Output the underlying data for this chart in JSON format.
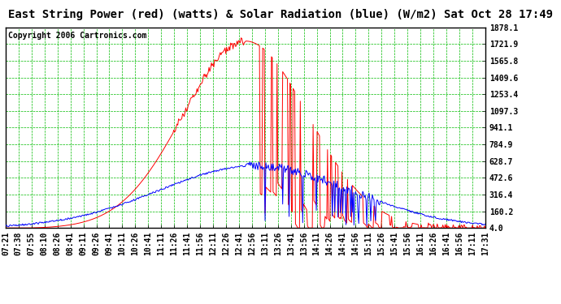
{
  "title": "East String Power (red) (watts) & Solar Radiation (blue) (W/m2) Sat Oct 28 17:49",
  "copyright": "Copyright 2006 Cartronics.com",
  "bg_color": "#ffffff",
  "plot_bg_color": "#ffffff",
  "grid_color": "#00bb00",
  "title_color": "#000000",
  "red_color": "#ff0000",
  "blue_color": "#0000ff",
  "copyright_color": "#000000",
  "yticks": [
    4.0,
    160.2,
    316.4,
    472.6,
    628.7,
    784.9,
    941.1,
    1097.3,
    1253.4,
    1409.6,
    1565.8,
    1721.9,
    1878.1
  ],
  "ylim": [
    4.0,
    1878.1
  ],
  "xtick_labels": [
    "07:21",
    "07:38",
    "07:55",
    "08:10",
    "08:26",
    "08:41",
    "09:11",
    "09:26",
    "09:41",
    "10:11",
    "10:26",
    "10:41",
    "11:11",
    "11:26",
    "11:41",
    "11:56",
    "12:11",
    "12:26",
    "12:41",
    "12:56",
    "13:11",
    "13:26",
    "13:41",
    "13:56",
    "14:11",
    "14:26",
    "14:41",
    "14:56",
    "15:11",
    "15:26",
    "15:41",
    "15:56",
    "16:11",
    "16:26",
    "16:41",
    "16:56",
    "17:11",
    "17:31"
  ],
  "title_fontsize": 10,
  "tick_fontsize": 7,
  "copyright_fontsize": 7
}
